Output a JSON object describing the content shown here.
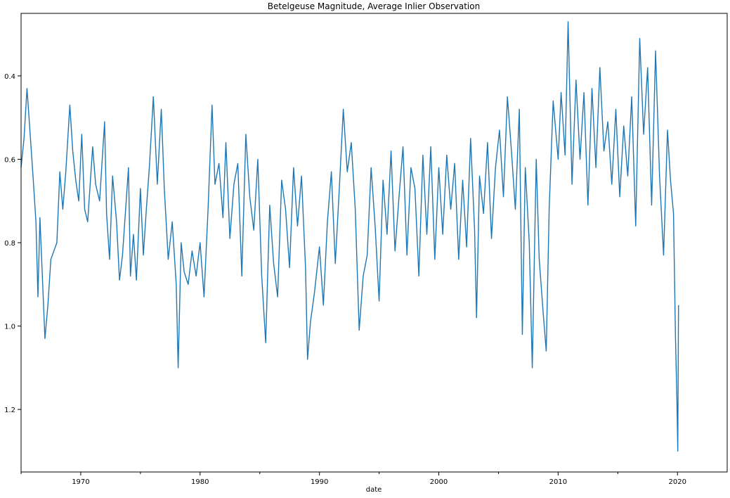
{
  "chart_data": {
    "type": "line",
    "title": "Betelgeuse Magnitude, Average Inlier Observation",
    "xlabel": "date",
    "ylabel": "",
    "x_domain": [
      "1965-01-01",
      "2024-03-01"
    ],
    "ylim": [
      1.35,
      0.25
    ],
    "y_inverted": true,
    "y_ticks": [
      0.4,
      0.6,
      0.8,
      1.0,
      1.2
    ],
    "y_tick_labels": [
      "0.4",
      "0.6",
      "0.8",
      "1.0",
      "1.2"
    ],
    "x_ticks": [
      "1970-01-01",
      "1980-01-01",
      "1990-01-01",
      "2000-01-01",
      "2010-01-01",
      "2020-01-01"
    ],
    "x_tick_labels": [
      "1970",
      "1980",
      "1990",
      "2000",
      "2010",
      "2020"
    ],
    "x_minor_ticks": [
      "1965-01-01",
      "1975-01-01",
      "1985-01-01",
      "1995-01-01",
      "2005-01-01",
      "2015-01-01"
    ],
    "grid": false,
    "legend": "none",
    "line_color": "#1f77b4",
    "series": [
      {
        "values": [
          [
            "1965-01-01",
            0.62
          ],
          [
            "1965-04-01",
            0.55
          ],
          [
            "1965-07-01",
            0.43
          ],
          [
            "1965-08-15",
            0.48
          ],
          [
            "1966-01-01",
            0.64
          ],
          [
            "1966-04-01",
            0.75
          ],
          [
            "1966-06-01",
            0.93
          ],
          [
            "1966-08-01",
            0.74
          ],
          [
            "1967-01-01",
            1.03
          ],
          [
            "1967-04-01",
            0.95
          ],
          [
            "1967-07-01",
            0.84
          ],
          [
            "1968-01-01",
            0.8
          ],
          [
            "1968-04-01",
            0.63
          ],
          [
            "1968-07-01",
            0.72
          ],
          [
            "1968-10-01",
            0.63
          ],
          [
            "1969-02-01",
            0.47
          ],
          [
            "1969-05-01",
            0.58
          ],
          [
            "1969-08-01",
            0.65
          ],
          [
            "1969-11-01",
            0.7
          ],
          [
            "1970-02-01",
            0.54
          ],
          [
            "1970-05-01",
            0.72
          ],
          [
            "1970-08-01",
            0.75
          ],
          [
            "1971-01-01",
            0.57
          ],
          [
            "1971-04-01",
            0.66
          ],
          [
            "1971-08-01",
            0.7
          ],
          [
            "1972-01-01",
            0.51
          ],
          [
            "1972-03-01",
            0.73
          ],
          [
            "1972-06-01",
            0.84
          ],
          [
            "1972-09-01",
            0.64
          ],
          [
            "1973-01-01",
            0.75
          ],
          [
            "1973-04-01",
            0.89
          ],
          [
            "1973-07-01",
            0.83
          ],
          [
            "1974-01-01",
            0.62
          ],
          [
            "1974-03-01",
            0.88
          ],
          [
            "1974-06-01",
            0.78
          ],
          [
            "1974-09-01",
            0.89
          ],
          [
            "1975-01-01",
            0.67
          ],
          [
            "1975-04-01",
            0.83
          ],
          [
            "1975-07-01",
            0.72
          ],
          [
            "1975-10-01",
            0.62
          ],
          [
            "1976-02-01",
            0.45
          ],
          [
            "1976-06-01",
            0.66
          ],
          [
            "1976-10-01",
            0.48
          ],
          [
            "1977-01-01",
            0.67
          ],
          [
            "1977-05-01",
            0.84
          ],
          [
            "1977-09-01",
            0.75
          ],
          [
            "1978-01-01",
            0.9
          ],
          [
            "1978-03-01",
            1.1
          ],
          [
            "1978-06-01",
            0.8
          ],
          [
            "1978-09-01",
            0.87
          ],
          [
            "1979-01-01",
            0.9
          ],
          [
            "1979-05-01",
            0.82
          ],
          [
            "1979-09-01",
            0.88
          ],
          [
            "1980-01-01",
            0.8
          ],
          [
            "1980-05-01",
            0.93
          ],
          [
            "1980-09-01",
            0.72
          ],
          [
            "1981-01-01",
            0.47
          ],
          [
            "1981-04-01",
            0.66
          ],
          [
            "1981-08-01",
            0.61
          ],
          [
            "1981-12-01",
            0.74
          ],
          [
            "1982-03-01",
            0.56
          ],
          [
            "1982-07-01",
            0.79
          ],
          [
            "1982-11-01",
            0.66
          ],
          [
            "1983-03-01",
            0.61
          ],
          [
            "1983-07-01",
            0.88
          ],
          [
            "1983-11-01",
            0.54
          ],
          [
            "1984-03-01",
            0.69
          ],
          [
            "1984-07-01",
            0.77
          ],
          [
            "1984-11-01",
            0.6
          ],
          [
            "1985-03-01",
            0.88
          ],
          [
            "1985-07-01",
            1.04
          ],
          [
            "1985-11-01",
            0.71
          ],
          [
            "1986-03-01",
            0.85
          ],
          [
            "1986-07-01",
            0.93
          ],
          [
            "1986-11-01",
            0.65
          ],
          [
            "1987-03-01",
            0.72
          ],
          [
            "1987-07-01",
            0.86
          ],
          [
            "1987-11-01",
            0.62
          ],
          [
            "1988-03-01",
            0.76
          ],
          [
            "1988-07-01",
            0.64
          ],
          [
            "1988-11-01",
            0.86
          ],
          [
            "1989-01-01",
            1.08
          ],
          [
            "1989-04-01",
            0.99
          ],
          [
            "1989-08-01",
            0.92
          ],
          [
            "1990-01-01",
            0.81
          ],
          [
            "1990-05-01",
            0.95
          ],
          [
            "1990-09-01",
            0.75
          ],
          [
            "1991-01-01",
            0.63
          ],
          [
            "1991-05-01",
            0.85
          ],
          [
            "1991-09-01",
            0.67
          ],
          [
            "1992-01-01",
            0.48
          ],
          [
            "1992-05-01",
            0.63
          ],
          [
            "1992-09-01",
            0.56
          ],
          [
            "1993-01-01",
            0.72
          ],
          [
            "1993-05-01",
            1.01
          ],
          [
            "1993-09-01",
            0.88
          ],
          [
            "1994-01-01",
            0.83
          ],
          [
            "1994-05-01",
            0.62
          ],
          [
            "1994-09-01",
            0.76
          ],
          [
            "1995-01-01",
            0.94
          ],
          [
            "1995-05-01",
            0.65
          ],
          [
            "1995-09-01",
            0.78
          ],
          [
            "1996-01-01",
            0.58
          ],
          [
            "1996-05-01",
            0.82
          ],
          [
            "1996-09-01",
            0.69
          ],
          [
            "1997-01-01",
            0.57
          ],
          [
            "1997-05-01",
            0.83
          ],
          [
            "1997-09-01",
            0.62
          ],
          [
            "1998-01-01",
            0.67
          ],
          [
            "1998-05-01",
            0.88
          ],
          [
            "1998-09-01",
            0.59
          ],
          [
            "1999-01-01",
            0.78
          ],
          [
            "1999-05-01",
            0.57
          ],
          [
            "1999-09-01",
            0.84
          ],
          [
            "2000-01-01",
            0.62
          ],
          [
            "2000-05-01",
            0.78
          ],
          [
            "2000-09-01",
            0.59
          ],
          [
            "2001-01-01",
            0.72
          ],
          [
            "2001-05-01",
            0.61
          ],
          [
            "2001-09-01",
            0.84
          ],
          [
            "2002-01-01",
            0.65
          ],
          [
            "2002-05-01",
            0.81
          ],
          [
            "2002-09-01",
            0.55
          ],
          [
            "2003-01-01",
            0.77
          ],
          [
            "2003-03-01",
            0.98
          ],
          [
            "2003-06-01",
            0.64
          ],
          [
            "2003-10-01",
            0.73
          ],
          [
            "2004-02-01",
            0.56
          ],
          [
            "2004-06-01",
            0.79
          ],
          [
            "2004-10-01",
            0.62
          ],
          [
            "2005-02-01",
            0.53
          ],
          [
            "2005-06-01",
            0.69
          ],
          [
            "2005-10-01",
            0.45
          ],
          [
            "2006-02-01",
            0.58
          ],
          [
            "2006-06-01",
            0.72
          ],
          [
            "2006-10-01",
            0.48
          ],
          [
            "2007-01-01",
            1.02
          ],
          [
            "2007-04-01",
            0.62
          ],
          [
            "2007-08-01",
            0.8
          ],
          [
            "2007-11-01",
            1.1
          ],
          [
            "2008-03-01",
            0.6
          ],
          [
            "2008-06-01",
            0.84
          ],
          [
            "2008-10-01",
            0.97
          ],
          [
            "2009-01-01",
            1.06
          ],
          [
            "2009-04-01",
            0.72
          ],
          [
            "2009-08-01",
            0.46
          ],
          [
            "2010-01-01",
            0.6
          ],
          [
            "2010-04-01",
            0.44
          ],
          [
            "2010-08-01",
            0.59
          ],
          [
            "2010-11-01",
            0.27
          ],
          [
            "2011-03-01",
            0.66
          ],
          [
            "2011-07-01",
            0.41
          ],
          [
            "2011-11-01",
            0.6
          ],
          [
            "2012-03-01",
            0.44
          ],
          [
            "2012-07-01",
            0.71
          ],
          [
            "2012-11-01",
            0.43
          ],
          [
            "2013-03-01",
            0.62
          ],
          [
            "2013-07-01",
            0.38
          ],
          [
            "2013-11-01",
            0.58
          ],
          [
            "2014-03-01",
            0.51
          ],
          [
            "2014-07-01",
            0.66
          ],
          [
            "2014-11-01",
            0.48
          ],
          [
            "2015-03-01",
            0.69
          ],
          [
            "2015-07-01",
            0.52
          ],
          [
            "2015-11-01",
            0.64
          ],
          [
            "2016-03-01",
            0.45
          ],
          [
            "2016-07-01",
            0.76
          ],
          [
            "2016-11-01",
            0.31
          ],
          [
            "2017-03-01",
            0.54
          ],
          [
            "2017-07-01",
            0.38
          ],
          [
            "2017-11-01",
            0.71
          ],
          [
            "2018-03-01",
            0.34
          ],
          [
            "2018-07-01",
            0.64
          ],
          [
            "2018-11-01",
            0.83
          ],
          [
            "2019-03-01",
            0.53
          ],
          [
            "2019-06-01",
            0.65
          ],
          [
            "2019-09-01",
            0.73
          ],
          [
            "2019-11-01",
            1.03
          ],
          [
            "2019-12-15",
            1.18
          ],
          [
            "2020-01-10",
            1.3
          ],
          [
            "2020-02-01",
            0.95
          ]
        ]
      }
    ]
  }
}
